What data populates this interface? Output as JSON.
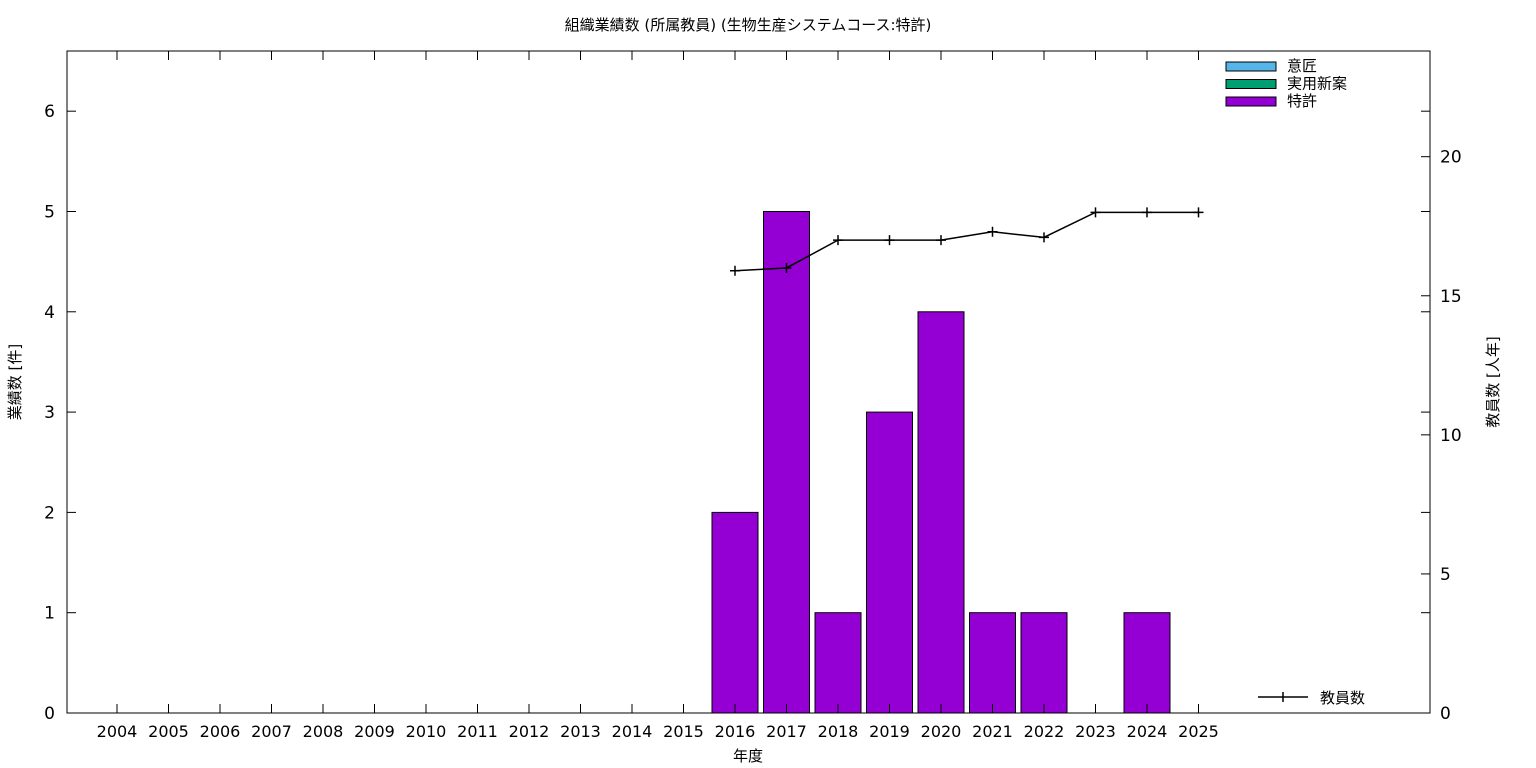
{
  "chart_data": {
    "type": "bar",
    "title": "組織業績数 (所属教員) (生物生産システムコース:特許)",
    "xlabel": "年度",
    "ylabel": "業績数 [件]",
    "y2label": "教員数 [人年]",
    "categories": [
      "2004",
      "2005",
      "2006",
      "2007",
      "2008",
      "2009",
      "2010",
      "2011",
      "2012",
      "2013",
      "2014",
      "2015",
      "2016",
      "2017",
      "2018",
      "2019",
      "2020",
      "2021",
      "2022",
      "2023",
      "2024",
      "2025"
    ],
    "ylim": [
      0,
      6.6
    ],
    "yticks": [
      0,
      1,
      2,
      3,
      4,
      5,
      6
    ],
    "y2lim": [
      0,
      23.8
    ],
    "y2ticks": [
      0,
      5,
      10,
      15,
      20
    ],
    "legend_position": "top-right",
    "series": [
      {
        "name": "意匠",
        "color": "#56b4e9",
        "values": [
          0,
          0,
          0,
          0,
          0,
          0,
          0,
          0,
          0,
          0,
          0,
          0,
          0,
          0,
          0,
          0,
          0,
          0,
          0,
          0,
          0,
          0
        ]
      },
      {
        "name": "実用新案",
        "color": "#009e73",
        "values": [
          0,
          0,
          0,
          0,
          0,
          0,
          0,
          0,
          0,
          0,
          0,
          0,
          0,
          0,
          0,
          0,
          0,
          0,
          0,
          0,
          0,
          0
        ]
      },
      {
        "name": "特許",
        "color": "#9400d3",
        "values": [
          0,
          0,
          0,
          0,
          0,
          0,
          0,
          0,
          0,
          0,
          0,
          0,
          2,
          5,
          1,
          3,
          4,
          1,
          1,
          0,
          1,
          0
        ]
      }
    ],
    "line_series": {
      "name": "教員数",
      "axis": "y2",
      "color": "#000000",
      "values": [
        null,
        null,
        null,
        null,
        null,
        null,
        null,
        null,
        null,
        null,
        null,
        null,
        15.9,
        16,
        17,
        17,
        17,
        17.3,
        17.1,
        18,
        18,
        18
      ]
    }
  }
}
